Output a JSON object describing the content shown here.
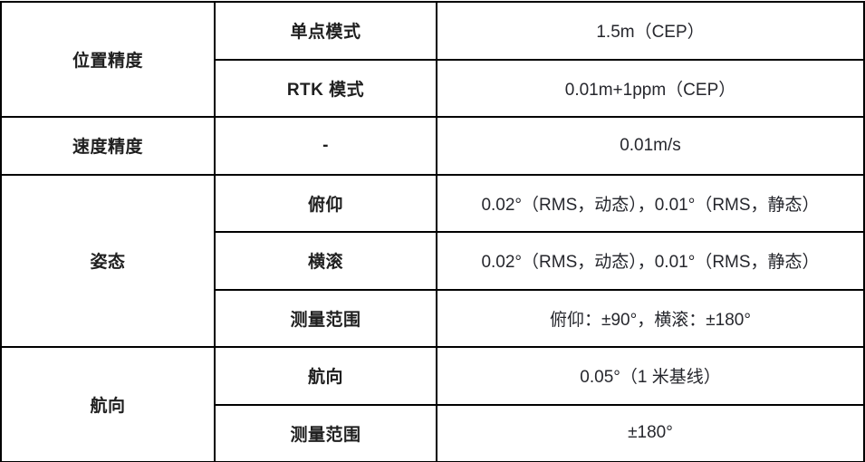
{
  "table": {
    "colors": {
      "border": "#000000",
      "label_text": "#1f1f1f",
      "value_text": "#26272d",
      "background": "#ffffff"
    },
    "groups": [
      {
        "category": "位置精度",
        "rows": [
          {
            "param": "单点模式",
            "value": "1.5m（CEP）"
          },
          {
            "param": "RTK 模式",
            "value": "0.01m+1ppm（CEP）"
          }
        ]
      },
      {
        "category": "速度精度",
        "rows": [
          {
            "param": "-",
            "value": "0.01m/s"
          }
        ]
      },
      {
        "category": "姿态",
        "rows": [
          {
            "param": "俯仰",
            "value": "0.02°（RMS，动态），0.01°（RMS，静态）"
          },
          {
            "param": "横滚",
            "value": "0.02°（RMS，动态），0.01°（RMS，静态）"
          },
          {
            "param": "测量范围",
            "value": "俯仰：±90°，横滚：±180°"
          }
        ]
      },
      {
        "category": "航向",
        "rows": [
          {
            "param": "航向",
            "value": "0.05°（1 米基线）"
          },
          {
            "param": "测量范围",
            "value": "±180°"
          }
        ]
      }
    ]
  }
}
